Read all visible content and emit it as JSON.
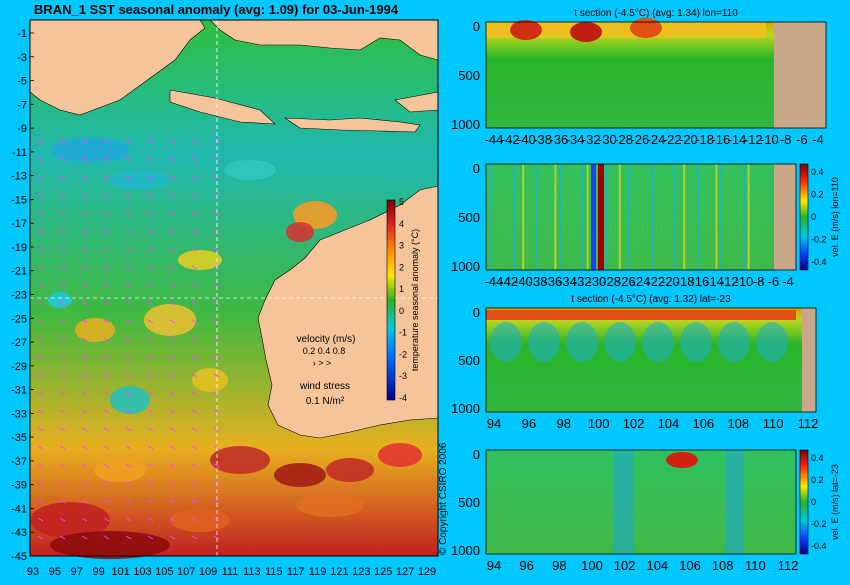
{
  "page": {
    "background": "#00c8ff"
  },
  "map": {
    "title": "BRAN_1 SST seasonal anomaly (avg: 1.09) for 03-Jun-1994",
    "lat_labels": [
      "-1",
      "-3",
      "-5",
      "-7",
      "-9",
      "-11",
      "-13",
      "-15",
      "-17",
      "-19",
      "-21",
      "-23",
      "-25",
      "-27",
      "-29",
      "-31",
      "-33",
      "-35",
      "-37",
      "-39",
      "-41",
      "-43",
      "-45"
    ],
    "lon_labels": [
      "93",
      "95",
      "97",
      "99",
      "101",
      "103",
      "105",
      "107",
      "109",
      "111",
      "113",
      "115",
      "117",
      "119",
      "121",
      "123",
      "125",
      "127",
      "129"
    ],
    "colorbar": {
      "ticks": [
        "5",
        "4",
        "3",
        "2",
        "1",
        "0",
        "-1",
        "-2",
        "-3",
        "-4"
      ],
      "label": "temperature seasonal anomaly (°C)",
      "range": [
        -4,
        5
      ]
    },
    "legend": {
      "velocity_label": "velocity (m/s)",
      "velocity_values": "0.2 0.4 0.8",
      "wind_label": "wind stress",
      "wind_value": "0.1 N/m²"
    },
    "copyright": "© Copyright CSIRO 2006",
    "colors": {
      "land": "#f5c49a",
      "warm": "#d01010",
      "neutral": "#28b428",
      "cool": "#00c8e0",
      "vector": "#ff40ff"
    }
  },
  "sections": [
    {
      "title": "t section (-4.5°C) (avg: 1.34) lon=110",
      "y_ticks": [
        "0",
        "500",
        "1000"
      ],
      "x_ticks": [
        "-44",
        "-42",
        "-40",
        "-38",
        "-36",
        "-34",
        "-32",
        "-30",
        "-28",
        "-26",
        "-24",
        "-22",
        "-20",
        "-18",
        "-16",
        "-14",
        "-12",
        "-10",
        "-8",
        "-6",
        "-4"
      ],
      "colorbar": null
    },
    {
      "title": "",
      "y_ticks": [
        "0",
        "500",
        "1000"
      ],
      "x_ticks": [
        "-44",
        "-42",
        "-40",
        "-38",
        "-36",
        "-34",
        "-32",
        "-30",
        "-28",
        "-26",
        "-24",
        "-22",
        "-20",
        "-18",
        "-16",
        "-14",
        "-12",
        "-10",
        "-8",
        "-6",
        "-4"
      ],
      "colorbar": {
        "ticks": [
          "0.4",
          "0.2",
          "0",
          "-0.2",
          "-0.4"
        ],
        "label": "vel. E (m/s) lon=110"
      }
    },
    {
      "title": "t section (-4.5°C) (avg: 1.32) lat=-23",
      "y_ticks": [
        "0",
        "500",
        "1000"
      ],
      "x_ticks": [
        "94",
        "96",
        "98",
        "100",
        "102",
        "104",
        "106",
        "108",
        "110",
        "112"
      ],
      "colorbar": null
    },
    {
      "title": "",
      "y_ticks": [
        "0",
        "500",
        "1000"
      ],
      "x_ticks": [
        "94",
        "96",
        "98",
        "100",
        "102",
        "104",
        "106",
        "108",
        "110",
        "112"
      ],
      "colorbar": {
        "ticks": [
          "0.4",
          "0.2",
          "0",
          "-0.2",
          "-0.4"
        ],
        "label": "vel. E (m/s) lat=-23"
      }
    }
  ]
}
